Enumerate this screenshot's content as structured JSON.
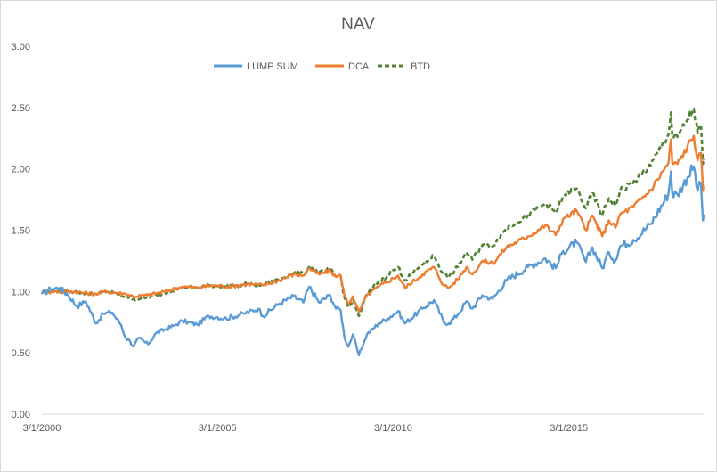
{
  "chart_data": {
    "type": "line",
    "title": "NAV",
    "xlabel": "",
    "ylabel": "",
    "ylim": [
      0,
      3
    ],
    "yticks": [
      "0.00",
      "0.50",
      "1.00",
      "1.50",
      "2.00",
      "2.50",
      "3.00"
    ],
    "xticks": [
      "3/1/2000",
      "3/1/2005",
      "3/1/2010",
      "3/1/2015"
    ],
    "xrange": [
      "2000-03-01",
      "2018-12-31"
    ],
    "grid": false,
    "legend": "top-center",
    "series": [
      {
        "name": "LUMP SUM",
        "color": "#5b9bd5",
        "style": "solid",
        "points": [
          [
            "2000-03-01",
            0.98
          ],
          [
            "2000-06-01",
            1.02
          ],
          [
            "2000-09-01",
            1.03
          ],
          [
            "2000-12-01",
            0.97
          ],
          [
            "2001-03-01",
            0.88
          ],
          [
            "2001-06-01",
            0.92
          ],
          [
            "2001-09-15",
            0.74
          ],
          [
            "2001-12-01",
            0.82
          ],
          [
            "2002-03-01",
            0.83
          ],
          [
            "2002-06-01",
            0.73
          ],
          [
            "2002-07-20",
            0.62
          ],
          [
            "2002-09-01",
            0.6
          ],
          [
            "2002-10-10",
            0.55
          ],
          [
            "2002-12-01",
            0.62
          ],
          [
            "2003-03-10",
            0.57
          ],
          [
            "2003-06-01",
            0.66
          ],
          [
            "2003-12-01",
            0.72
          ],
          [
            "2004-03-01",
            0.76
          ],
          [
            "2004-08-01",
            0.73
          ],
          [
            "2004-12-01",
            0.8
          ],
          [
            "2005-03-01",
            0.79
          ],
          [
            "2005-06-01",
            0.78
          ],
          [
            "2005-12-01",
            0.82
          ],
          [
            "2006-05-01",
            0.86
          ],
          [
            "2006-06-15",
            0.8
          ],
          [
            "2006-12-01",
            0.9
          ],
          [
            "2007-05-01",
            0.96
          ],
          [
            "2007-08-10",
            0.91
          ],
          [
            "2007-10-10",
            1.04
          ],
          [
            "2008-01-20",
            0.91
          ],
          [
            "2008-05-15",
            0.97
          ],
          [
            "2008-07-15",
            0.86
          ],
          [
            "2008-09-01",
            0.85
          ],
          [
            "2008-10-10",
            0.63
          ],
          [
            "2008-11-20",
            0.55
          ],
          [
            "2009-01-06",
            0.65
          ],
          [
            "2009-03-09",
            0.48
          ],
          [
            "2009-06-01",
            0.65
          ],
          [
            "2009-10-01",
            0.74
          ],
          [
            "2009-12-31",
            0.78
          ],
          [
            "2010-04-20",
            0.84
          ],
          [
            "2010-07-01",
            0.74
          ],
          [
            "2010-12-31",
            0.86
          ],
          [
            "2011-04-29",
            0.93
          ],
          [
            "2011-08-08",
            0.75
          ],
          [
            "2011-10-01",
            0.74
          ],
          [
            "2011-12-31",
            0.81
          ],
          [
            "2012-04-01",
            0.92
          ],
          [
            "2012-06-01",
            0.86
          ],
          [
            "2012-09-14",
            0.97
          ],
          [
            "2012-12-31",
            0.94
          ],
          [
            "2013-05-21",
            1.09
          ],
          [
            "2013-12-31",
            1.2
          ],
          [
            "2014-06-30",
            1.27
          ],
          [
            "2014-10-15",
            1.19
          ],
          [
            "2014-12-31",
            1.33
          ],
          [
            "2015-05-21",
            1.4
          ],
          [
            "2015-08-24",
            1.24
          ],
          [
            "2015-11-01",
            1.36
          ],
          [
            "2016-02-11",
            1.19
          ],
          [
            "2016-04-20",
            1.32
          ],
          [
            "2016-06-27",
            1.25
          ],
          [
            "2016-08-15",
            1.37
          ],
          [
            "2016-12-31",
            1.42
          ],
          [
            "2017-06-30",
            1.55
          ],
          [
            "2017-12-31",
            1.8
          ],
          [
            "2018-01-26",
            1.98
          ],
          [
            "2018-02-08",
            1.8
          ],
          [
            "2018-04-02",
            1.79
          ],
          [
            "2018-07-15",
            1.93
          ],
          [
            "2018-09-20",
            2.02
          ],
          [
            "2018-10-29",
            1.82
          ],
          [
            "2018-12-03",
            1.88
          ],
          [
            "2018-12-24",
            1.58
          ],
          [
            "2018-12-31",
            1.63
          ]
        ]
      },
      {
        "name": "DCA",
        "color": "#ed7d31",
        "style": "solid",
        "points": [
          [
            "2000-03-01",
            1.0
          ],
          [
            "2001-01-01",
            1.0
          ],
          [
            "2001-09-15",
            0.98
          ],
          [
            "2002-01-01",
            1.0
          ],
          [
            "2002-07-20",
            0.98
          ],
          [
            "2002-10-10",
            0.96
          ],
          [
            "2003-03-10",
            0.97
          ],
          [
            "2003-09-01",
            1.0
          ],
          [
            "2004-03-01",
            1.04
          ],
          [
            "2004-08-01",
            1.03
          ],
          [
            "2004-12-31",
            1.05
          ],
          [
            "2005-06-01",
            1.04
          ],
          [
            "2005-12-31",
            1.06
          ],
          [
            "2006-06-15",
            1.05
          ],
          [
            "2006-12-31",
            1.1
          ],
          [
            "2007-05-01",
            1.14
          ],
          [
            "2007-08-10",
            1.13
          ],
          [
            "2007-10-10",
            1.19
          ],
          [
            "2008-01-20",
            1.14
          ],
          [
            "2008-05-15",
            1.17
          ],
          [
            "2008-07-15",
            1.12
          ],
          [
            "2008-09-01",
            1.13
          ],
          [
            "2008-10-10",
            0.97
          ],
          [
            "2008-11-20",
            0.9
          ],
          [
            "2009-01-06",
            0.96
          ],
          [
            "2009-03-09",
            0.83
          ],
          [
            "2009-06-01",
            0.97
          ],
          [
            "2009-10-01",
            1.04
          ],
          [
            "2009-12-31",
            1.08
          ],
          [
            "2010-04-20",
            1.13
          ],
          [
            "2010-07-01",
            1.03
          ],
          [
            "2010-12-31",
            1.14
          ],
          [
            "2011-04-29",
            1.2
          ],
          [
            "2011-08-08",
            1.05
          ],
          [
            "2011-10-01",
            1.03
          ],
          [
            "2011-12-31",
            1.1
          ],
          [
            "2012-04-01",
            1.2
          ],
          [
            "2012-06-01",
            1.14
          ],
          [
            "2012-09-14",
            1.25
          ],
          [
            "2012-12-31",
            1.23
          ],
          [
            "2013-05-21",
            1.36
          ],
          [
            "2013-12-31",
            1.45
          ],
          [
            "2014-06-30",
            1.54
          ],
          [
            "2014-10-15",
            1.46
          ],
          [
            "2014-12-31",
            1.59
          ],
          [
            "2015-05-21",
            1.66
          ],
          [
            "2015-08-24",
            1.5
          ],
          [
            "2015-11-01",
            1.62
          ],
          [
            "2016-02-11",
            1.45
          ],
          [
            "2016-04-20",
            1.58
          ],
          [
            "2016-06-27",
            1.52
          ],
          [
            "2016-08-15",
            1.63
          ],
          [
            "2016-12-31",
            1.69
          ],
          [
            "2017-06-30",
            1.83
          ],
          [
            "2017-12-31",
            2.05
          ],
          [
            "2018-01-26",
            2.24
          ],
          [
            "2018-02-08",
            2.05
          ],
          [
            "2018-04-02",
            2.04
          ],
          [
            "2018-07-15",
            2.18
          ],
          [
            "2018-09-20",
            2.27
          ],
          [
            "2018-10-29",
            2.07
          ],
          [
            "2018-12-03",
            2.13
          ],
          [
            "2018-12-24",
            1.82
          ],
          [
            "2018-12-31",
            1.86
          ]
        ]
      },
      {
        "name": "BTD",
        "color": "#548235",
        "style": "dashed",
        "points": [
          [
            "2000-03-01",
            1.0
          ],
          [
            "2001-01-01",
            1.0
          ],
          [
            "2001-09-15",
            0.98
          ],
          [
            "2002-01-01",
            1.0
          ],
          [
            "2002-07-20",
            0.96
          ],
          [
            "2002-10-10",
            0.94
          ],
          [
            "2003-03-10",
            0.95
          ],
          [
            "2003-09-01",
            0.99
          ],
          [
            "2004-03-01",
            1.04
          ],
          [
            "2004-08-01",
            1.03
          ],
          [
            "2004-12-31",
            1.05
          ],
          [
            "2005-06-01",
            1.04
          ],
          [
            "2005-12-31",
            1.06
          ],
          [
            "2006-06-15",
            1.05
          ],
          [
            "2006-12-31",
            1.11
          ],
          [
            "2007-05-01",
            1.15
          ],
          [
            "2007-08-10",
            1.14
          ],
          [
            "2007-10-10",
            1.2
          ],
          [
            "2008-01-20",
            1.15
          ],
          [
            "2008-05-15",
            1.18
          ],
          [
            "2008-07-15",
            1.12
          ],
          [
            "2008-09-01",
            1.13
          ],
          [
            "2008-10-10",
            0.95
          ],
          [
            "2008-11-20",
            0.87
          ],
          [
            "2009-01-06",
            0.93
          ],
          [
            "2009-03-09",
            0.8
          ],
          [
            "2009-06-01",
            0.98
          ],
          [
            "2009-10-01",
            1.08
          ],
          [
            "2009-12-31",
            1.13
          ],
          [
            "2010-04-20",
            1.2
          ],
          [
            "2010-07-01",
            1.09
          ],
          [
            "2010-12-31",
            1.22
          ],
          [
            "2011-04-29",
            1.29
          ],
          [
            "2011-08-08",
            1.14
          ],
          [
            "2011-10-01",
            1.12
          ],
          [
            "2011-12-31",
            1.2
          ],
          [
            "2012-04-01",
            1.32
          ],
          [
            "2012-06-01",
            1.26
          ],
          [
            "2012-09-14",
            1.38
          ],
          [
            "2012-12-31",
            1.37
          ],
          [
            "2013-05-21",
            1.52
          ],
          [
            "2013-12-31",
            1.62
          ],
          [
            "2014-06-30",
            1.72
          ],
          [
            "2014-10-15",
            1.64
          ],
          [
            "2014-12-31",
            1.78
          ],
          [
            "2015-05-21",
            1.84
          ],
          [
            "2015-08-24",
            1.68
          ],
          [
            "2015-11-01",
            1.8
          ],
          [
            "2016-02-11",
            1.62
          ],
          [
            "2016-04-20",
            1.76
          ],
          [
            "2016-06-27",
            1.7
          ],
          [
            "2016-08-15",
            1.82
          ],
          [
            "2016-12-31",
            1.89
          ],
          [
            "2017-06-30",
            2.03
          ],
          [
            "2017-12-31",
            2.28
          ],
          [
            "2018-01-26",
            2.46
          ],
          [
            "2018-02-08",
            2.27
          ],
          [
            "2018-04-02",
            2.26
          ],
          [
            "2018-07-15",
            2.4
          ],
          [
            "2018-09-20",
            2.49
          ],
          [
            "2018-10-29",
            2.29
          ],
          [
            "2018-12-03",
            2.36
          ],
          [
            "2018-12-24",
            2.04
          ],
          [
            "2018-12-31",
            2.08
          ]
        ]
      }
    ]
  }
}
